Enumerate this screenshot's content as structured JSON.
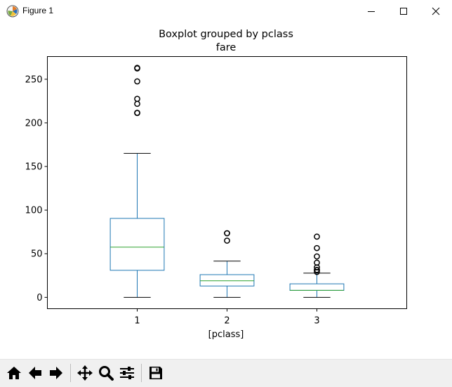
{
  "window": {
    "title": "Figure 1",
    "icons": {
      "app": "matplotlib-icon",
      "minimize": "minimize-icon",
      "maximize": "maximize-icon",
      "close": "close-icon"
    }
  },
  "toolbar": {
    "buttons": [
      {
        "name": "home-button",
        "icon": "home-icon"
      },
      {
        "name": "back-button",
        "icon": "arrow-left-icon"
      },
      {
        "name": "forward-button",
        "icon": "arrow-right-icon"
      },
      {
        "name": "pan-button",
        "icon": "move-icon"
      },
      {
        "name": "zoom-button",
        "icon": "magnifier-icon"
      },
      {
        "name": "subplots-button",
        "icon": "sliders-icon"
      },
      {
        "name": "save-button",
        "icon": "floppy-disk-icon"
      }
    ]
  },
  "chart_data": {
    "type": "boxplot",
    "title": "Boxplot grouped by pclass",
    "subtitle": "fare",
    "xlabel": "[pclass]",
    "ylabel": "",
    "categories": [
      "1",
      "2",
      "3"
    ],
    "ylim": [
      -13,
      276
    ],
    "yticks": [
      0,
      50,
      100,
      150,
      200,
      250
    ],
    "grid": false,
    "colors": {
      "box": "#1f77b4",
      "median": "#2ca02c",
      "whisker": "#1f77b4",
      "cap": "#000000",
      "flier": "#000000"
    },
    "boxes": [
      {
        "category": "1",
        "whislo": 0,
        "q1": 31,
        "median": 57.5,
        "q3": 90.5,
        "whishi": 165,
        "fliers": [
          211.3,
          211.5,
          221.8,
          227.5,
          247.5,
          262.4,
          263
        ]
      },
      {
        "category": "2",
        "whislo": 0,
        "q1": 13,
        "median": 19,
        "q3": 26,
        "whishi": 41.5,
        "fliers": [
          65,
          73.5,
          73.5
        ]
      },
      {
        "category": "3",
        "whislo": 0,
        "q1": 8,
        "median": 8.05,
        "q3": 15.5,
        "whishi": 27.8,
        "fliers": [
          29.1,
          31.3,
          31.4,
          34.4,
          39.7,
          46.9,
          56.5,
          69.6
        ]
      }
    ]
  }
}
